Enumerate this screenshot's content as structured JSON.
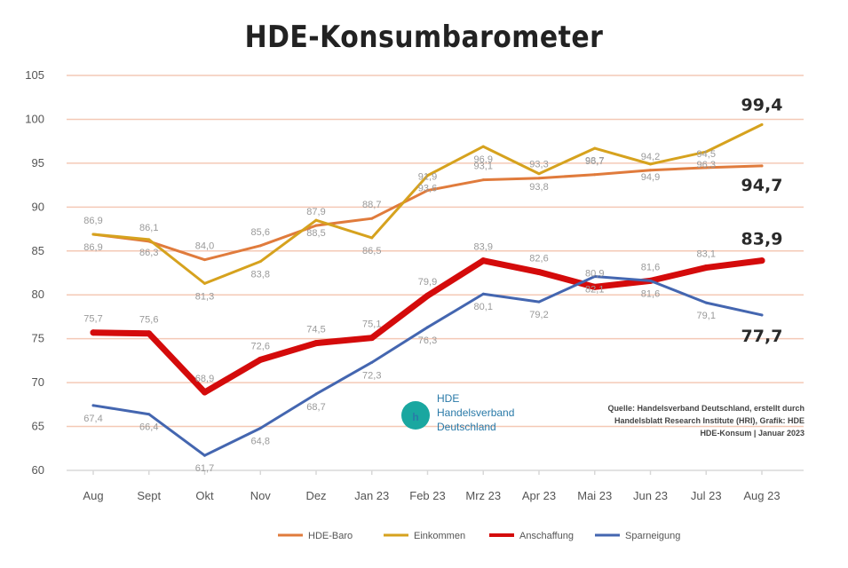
{
  "chart_data": {
    "type": "line",
    "title": "HDE-Konsumbarometer",
    "categories": [
      "Aug",
      "Sept",
      "Okt",
      "Nov",
      "Dez",
      "Jan 23",
      "Feb 23",
      "Mrz 23",
      "Apr 23",
      "Mai 23",
      "Jun 23",
      "Jul 23",
      "Aug 23"
    ],
    "ylim": [
      60,
      105
    ],
    "yticks": [
      60,
      65,
      70,
      75,
      80,
      85,
      90,
      95,
      100,
      105
    ],
    "grid": true,
    "legend_position": "bottom",
    "series": [
      {
        "name": "HDE-Baro",
        "color": "#e07b3c",
        "width": 3,
        "values": [
          86.9,
          86.1,
          84.0,
          85.6,
          87.9,
          88.7,
          91.9,
          93.1,
          93.3,
          93.7,
          94.2,
          94.5,
          94.7
        ],
        "labels": [
          "86,9",
          "86,1",
          "84,0",
          "85,6",
          "87,9",
          "88,7",
          "91,9",
          "93,1",
          "93,3",
          "93,7",
          "94,2",
          "94,5",
          "94,7"
        ],
        "end_label": "94,7"
      },
      {
        "name": "Einkommen",
        "color": "#d6a21e",
        "width": 3,
        "values": [
          86.9,
          86.3,
          81.3,
          83.8,
          88.5,
          86.5,
          93.6,
          96.9,
          93.8,
          96.7,
          94.9,
          96.3,
          99.4
        ],
        "labels": [
          "86,9",
          "86,3",
          "81,3",
          "83,8",
          "88,5",
          "86,5",
          "93,6",
          "96,9",
          "93,8",
          "96,7",
          "94,9",
          "96,3",
          "99,4"
        ],
        "end_label": "99,4"
      },
      {
        "name": "Anschaffung",
        "color": "#d40b0b",
        "width": 7,
        "values": [
          75.7,
          75.6,
          68.9,
          72.6,
          74.5,
          75.1,
          79.9,
          83.9,
          82.6,
          80.9,
          81.6,
          83.1,
          83.9
        ],
        "labels": [
          "75,7",
          "75,6",
          "68,9",
          "72,6",
          "74,5",
          "75,1",
          "79,9",
          "83,9",
          "82,6",
          "80,9",
          "81,6",
          "83,1",
          "83,9"
        ],
        "end_label": "83,9"
      },
      {
        "name": "Sparneigung",
        "color": "#4466b0",
        "width": 3,
        "values": [
          67.4,
          66.4,
          61.7,
          64.8,
          68.7,
          72.3,
          76.3,
          80.1,
          79.2,
          82.1,
          81.6,
          79.1,
          77.7
        ],
        "labels": [
          "67,4",
          "66,4",
          "61,7",
          "64,8",
          "68,7",
          "72,3",
          "76,3",
          "80,1",
          "79,2",
          "82,1",
          "81,6",
          "79,1",
          "77,7"
        ],
        "end_label": "77,7"
      }
    ],
    "source_lines": [
      "Quelle: Handelsverband Deutschland, erstellt durch",
      "Handelsblatt Research Institute (HRI), Grafik: HDE",
      "HDE-Konsum | Januar 2023"
    ],
    "logo_lines": [
      "HDE",
      "Handelsverband",
      "Deutschland"
    ]
  },
  "colors": {
    "grid": "#f4c9b6",
    "axis": "#d8d8d8",
    "logo_teal": "#1aa7a0",
    "logo_blue": "#2a7aa8"
  }
}
